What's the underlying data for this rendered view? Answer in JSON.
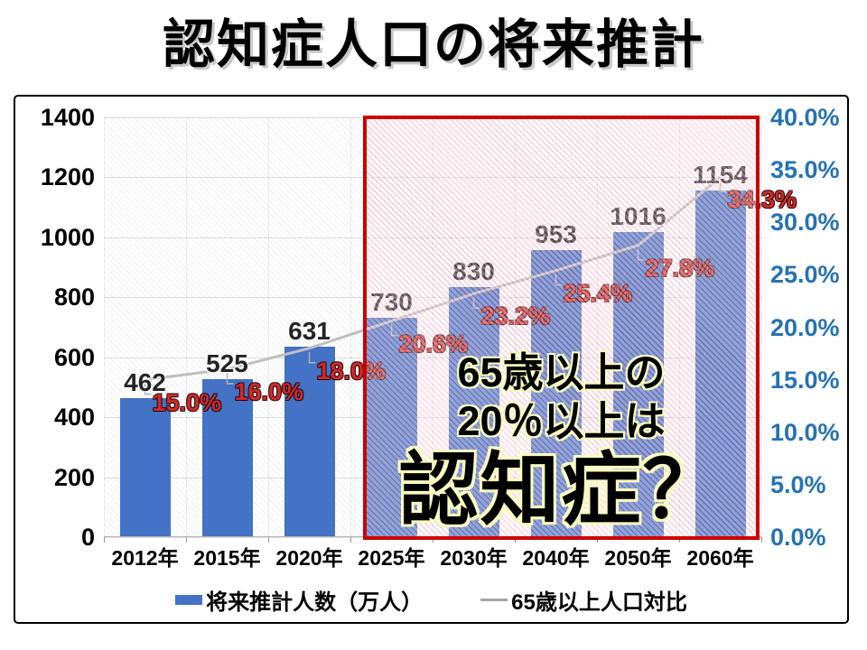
{
  "title": "認知症人口の将来推計",
  "chart_data": {
    "type": "combo-bar-line",
    "categories": [
      "2012年",
      "2015年",
      "2020年",
      "2025年",
      "2030年",
      "2040年",
      "2050年",
      "2060年"
    ],
    "series": [
      {
        "name": "将来推計人数（万人）",
        "type": "bar",
        "axis": "left",
        "values": [
          462,
          525,
          631,
          730,
          830,
          953,
          1016,
          1154
        ],
        "data_labels": [
          "462",
          "525",
          "631",
          "730",
          "830",
          "953",
          "1016",
          "1154"
        ]
      },
      {
        "name": "65歳以上人口対比",
        "type": "line",
        "axis": "right",
        "values": [
          15.0,
          16.0,
          18.0,
          20.6,
          23.2,
          25.4,
          27.8,
          34.3
        ],
        "data_labels": [
          "15.0%",
          "16.0%",
          "18.0%",
          "20.6%",
          "23.2%",
          "25.4%",
          "27.8%",
          "34.3%"
        ]
      }
    ],
    "left_axis": {
      "min": 0,
      "max": 1400,
      "ticks": [
        "1400",
        "1200",
        "1000",
        "800",
        "600",
        "400",
        "200",
        "0"
      ]
    },
    "right_axis": {
      "min": 0,
      "max": 40,
      "ticks": [
        "40.0%",
        "35.0%",
        "30.0%",
        "25.0%",
        "20.0%",
        "15.0%",
        "10.0%",
        "5.0%",
        "0.0%"
      ]
    },
    "grid": "on",
    "legend_position": "bottom"
  },
  "annotation": {
    "highlight_from_category": "2025年",
    "box_lines": [
      "65歳以上の",
      "20％以上は",
      "認知症？"
    ]
  },
  "legend": [
    {
      "label": "将来推計人数（万人）"
    },
    {
      "label": "65歳以上人口対比"
    }
  ],
  "colors": {
    "bar": "#4472c4",
    "line": "#bfbfbf",
    "leader": "#b3b3b3",
    "pct_label": "#cf2a2a",
    "right_axis_text": "#2572b4",
    "highlight_border": "#cc0000"
  }
}
